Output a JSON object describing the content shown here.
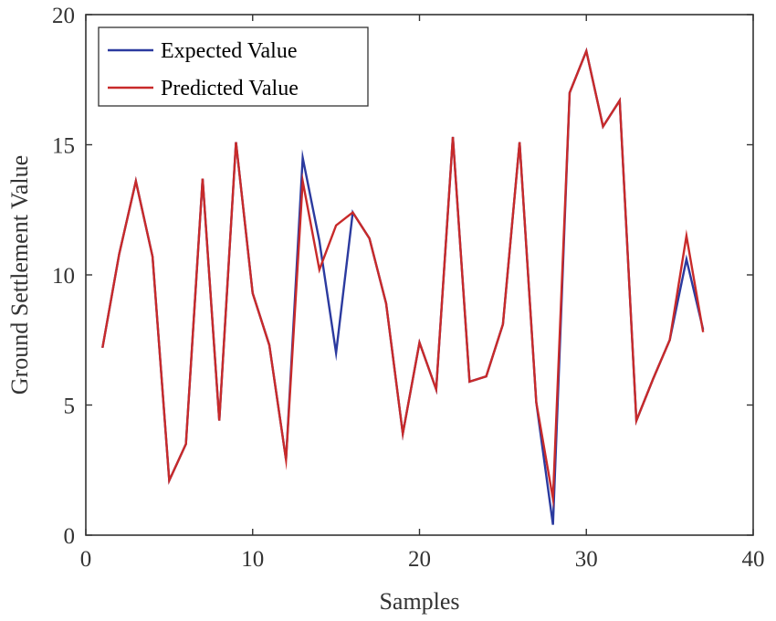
{
  "chart_data": {
    "type": "line",
    "title": "",
    "xlabel": "Samples",
    "ylabel": "Ground Settlement Value",
    "xlim": [
      0,
      40
    ],
    "ylim": [
      0,
      20
    ],
    "xticks": [
      0,
      10,
      20,
      30,
      40
    ],
    "yticks": [
      0,
      5,
      10,
      15,
      20
    ],
    "grid": false,
    "legend_position": "top-left",
    "x": [
      1,
      2,
      3,
      4,
      5,
      6,
      7,
      8,
      9,
      10,
      11,
      12,
      13,
      14,
      15,
      16,
      17,
      18,
      19,
      20,
      21,
      22,
      23,
      24,
      25,
      26,
      27,
      28,
      29,
      30,
      31,
      32,
      33,
      34,
      35,
      36,
      37
    ],
    "series": [
      {
        "name": "Expected Value",
        "color": "#2b3a9f",
        "values": [
          7.2,
          10.8,
          13.6,
          10.7,
          2.1,
          3.5,
          13.7,
          4.4,
          15.1,
          9.3,
          7.3,
          2.9,
          14.5,
          11.3,
          7.0,
          12.4,
          11.4,
          8.9,
          3.9,
          7.4,
          5.6,
          15.3,
          5.9,
          6.1,
          8.1,
          15.1,
          5.1,
          0.4,
          17.0,
          18.6,
          15.7,
          16.7,
          4.4,
          6.0,
          7.5,
          10.6,
          7.9
        ]
      },
      {
        "name": "Predicted Value",
        "color": "#c82a2a",
        "values": [
          7.2,
          10.8,
          13.6,
          10.7,
          2.1,
          3.5,
          13.7,
          4.4,
          15.1,
          9.3,
          7.3,
          2.9,
          13.6,
          10.2,
          11.9,
          12.4,
          11.4,
          8.9,
          3.9,
          7.4,
          5.6,
          15.3,
          5.9,
          6.1,
          8.1,
          15.1,
          5.1,
          1.4,
          17.0,
          18.6,
          15.7,
          16.7,
          4.4,
          6.0,
          7.5,
          11.5,
          7.8
        ]
      }
    ]
  }
}
